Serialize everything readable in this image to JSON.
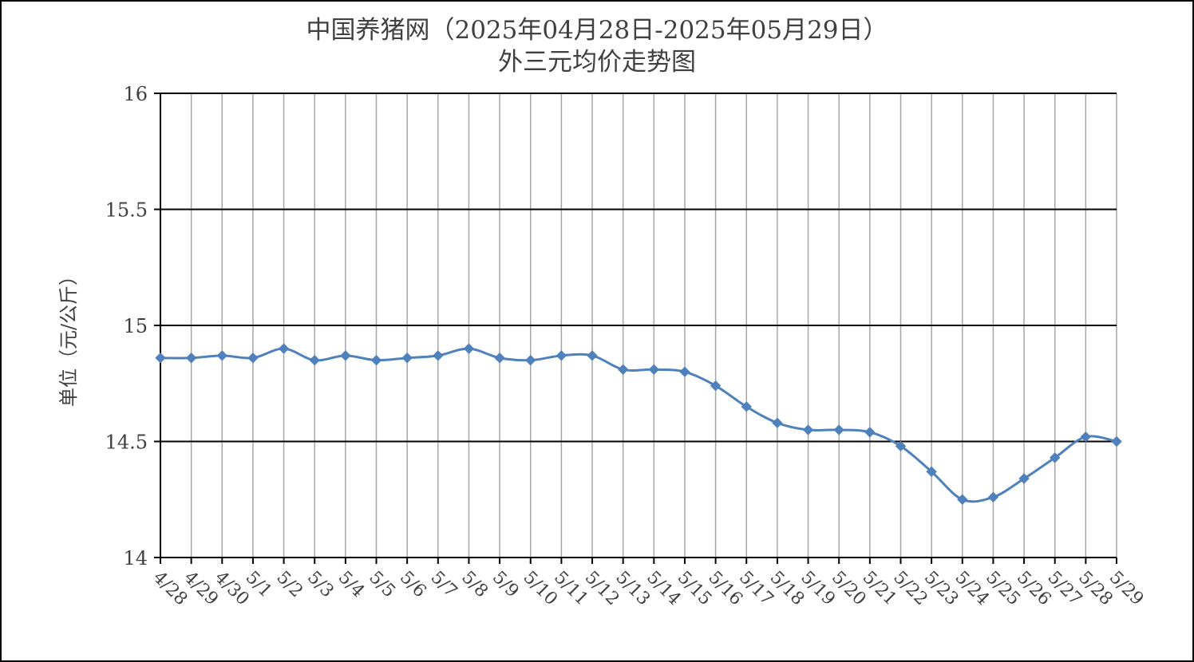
{
  "chart_data": {
    "type": "line",
    "title_lines": [
      "中国养猪网（2025年04月28日-2025年05月29日）",
      "外三元均价走势图"
    ],
    "xlabel": "",
    "ylabel": "单位（元/公斤）",
    "categories": [
      "4/28",
      "4/29",
      "4/30",
      "5/1",
      "5/2",
      "5/3",
      "5/4",
      "5/5",
      "5/6",
      "5/7",
      "5/8",
      "5/9",
      "5/10",
      "5/11",
      "5/12",
      "5/13",
      "5/14",
      "5/15",
      "5/16",
      "5/17",
      "5/18",
      "5/19",
      "5/20",
      "5/21",
      "5/22",
      "5/23",
      "5/24",
      "5/25",
      "5/26",
      "5/27",
      "5/28",
      "5/29"
    ],
    "series": [
      {
        "values": [
          14.86,
          14.86,
          14.87,
          14.86,
          14.9,
          14.85,
          14.87,
          14.85,
          14.86,
          14.87,
          14.9,
          14.86,
          14.85,
          14.87,
          14.87,
          14.81,
          14.81,
          14.8,
          14.74,
          14.65,
          14.58,
          14.55,
          14.55,
          14.54,
          14.48,
          14.37,
          14.25,
          14.26,
          14.34,
          14.43,
          14.52,
          14.5
        ],
        "color": "#4F81BD",
        "marker": "diamond",
        "smooth": true
      }
    ],
    "yticks": [
      "16",
      "15.5",
      "15",
      "14.5",
      "14"
    ],
    "ylim": [
      14,
      16
    ],
    "grid": true
  }
}
